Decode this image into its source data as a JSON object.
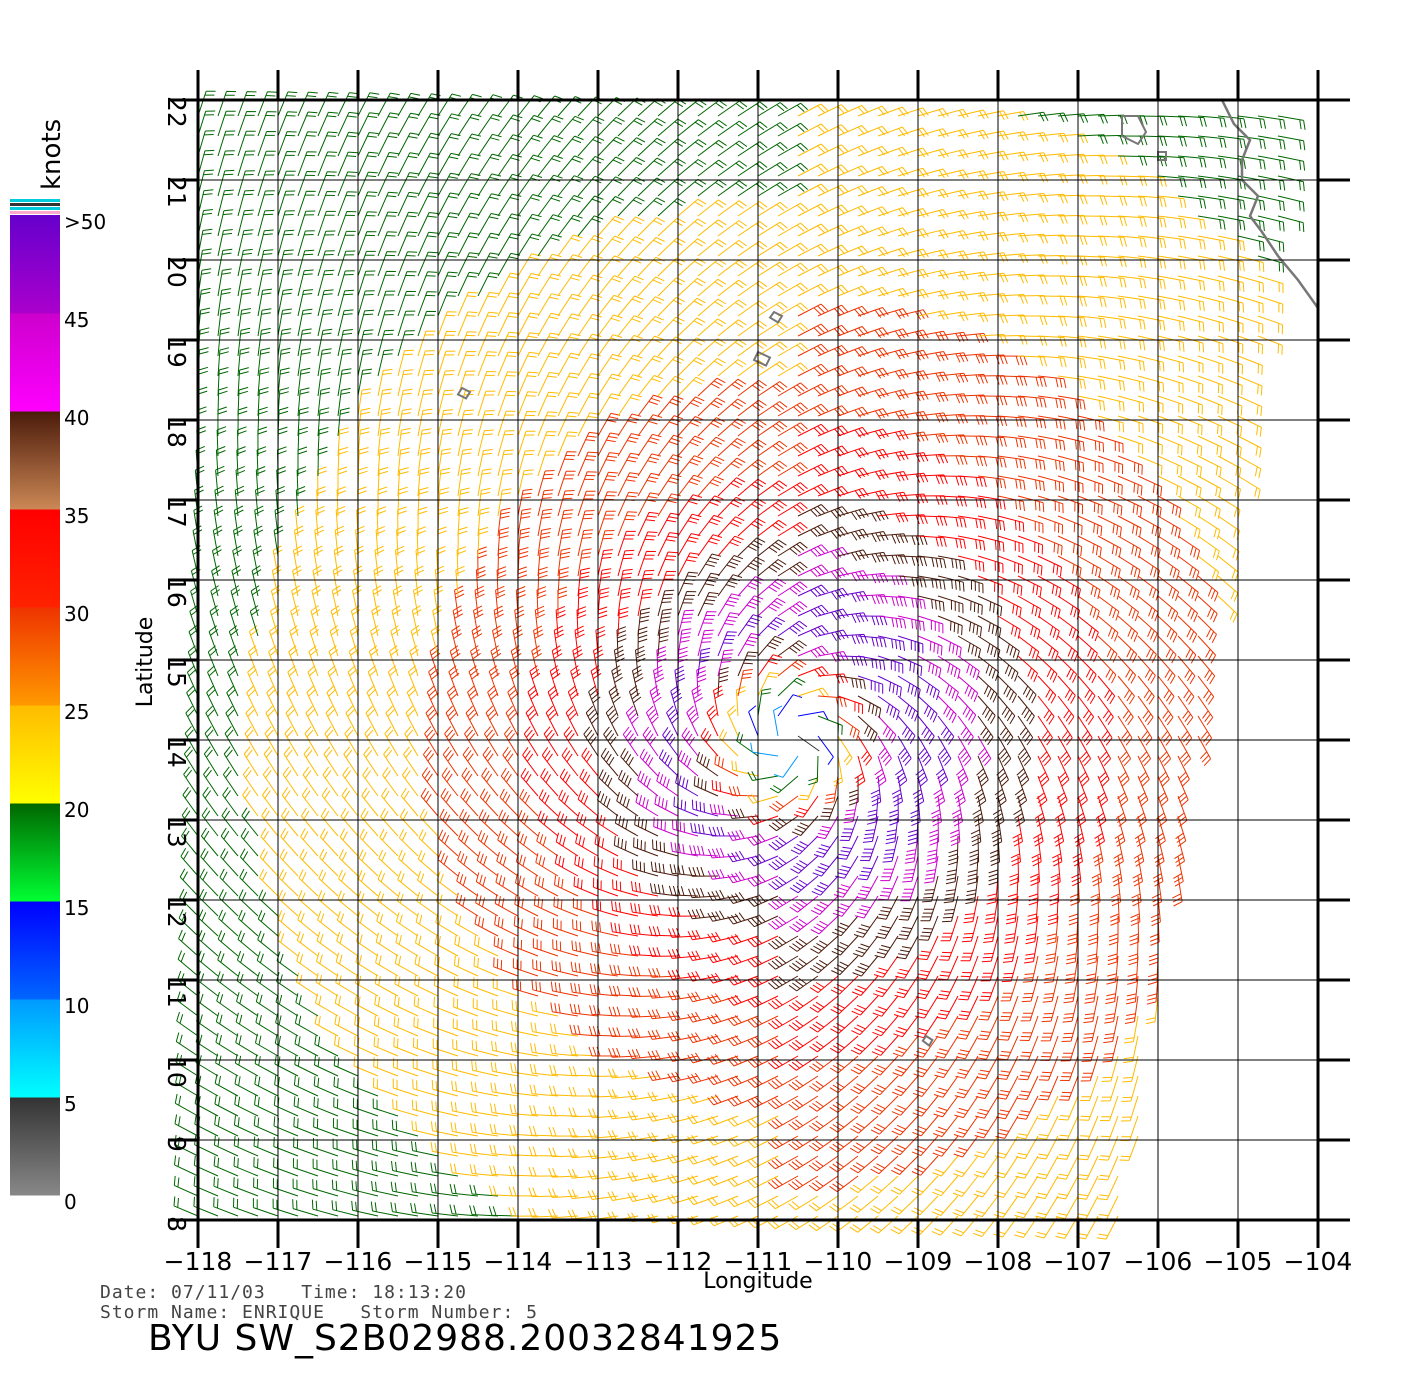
{
  "plot": {
    "xlabel": "Longitude",
    "ylabel": "Latitude",
    "lon_range": [
      -118,
      -104
    ],
    "lat_range": [
      8,
      22
    ],
    "lon_ticks": [
      "−118",
      "−117",
      "−116",
      "−115",
      "−114",
      "−113",
      "−112",
      "−111",
      "−110",
      "−109",
      "−108",
      "−107",
      "−106",
      "−105",
      "−104"
    ],
    "lat_ticks": [
      "8",
      "9",
      "10",
      "11",
      "12",
      "13",
      "14",
      "15",
      "16",
      "17",
      "18",
      "19",
      "20",
      "21",
      "22"
    ],
    "storm_center": {
      "lon": -110.6,
      "lat": 14.0
    },
    "wind_field": "cyclonic wind barbs",
    "coastline_color": "#777777"
  },
  "legend": {
    "unit": "knots",
    "labels": [
      ">50",
      "45",
      "40",
      "35",
      "30",
      "25",
      "20",
      "15",
      "10",
      "5",
      "0"
    ],
    "bands": [
      {
        "from": 0,
        "to": 5,
        "top": "#333333",
        "bottom": "#888888"
      },
      {
        "from": 5,
        "to": 10,
        "top": "#0099ff",
        "bottom": "#00ffff"
      },
      {
        "from": 10,
        "to": 15,
        "top": "#0000ff",
        "bottom": "#0066ff"
      },
      {
        "from": 15,
        "to": 20,
        "top": "#006600",
        "bottom": "#00ff33"
      },
      {
        "from": 20,
        "to": 25,
        "top": "#ffbb00",
        "bottom": "#ffff00"
      },
      {
        "from": 25,
        "to": 30,
        "top": "#ee3300",
        "bottom": "#ff9900"
      },
      {
        "from": 30,
        "to": 35,
        "top": "#ff0000",
        "bottom": "#ff2200"
      },
      {
        "from": 35,
        "to": 40,
        "top": "#4a1a0a",
        "bottom": "#cc8855"
      },
      {
        "from": 40,
        "to": 45,
        "top": "#cc00cc",
        "bottom": "#ff00ff"
      },
      {
        "from": 45,
        "to": 50,
        "top": "#6600cc",
        "bottom": "#aa00cc"
      }
    ]
  },
  "info": {
    "line1": "Date: 07/11/03   Time: 18:13:20",
    "line2": "Storm Name: ENRIQUE   Storm Number: 5"
  },
  "file_title": "BYU SW_S2B02988.20032841925"
}
